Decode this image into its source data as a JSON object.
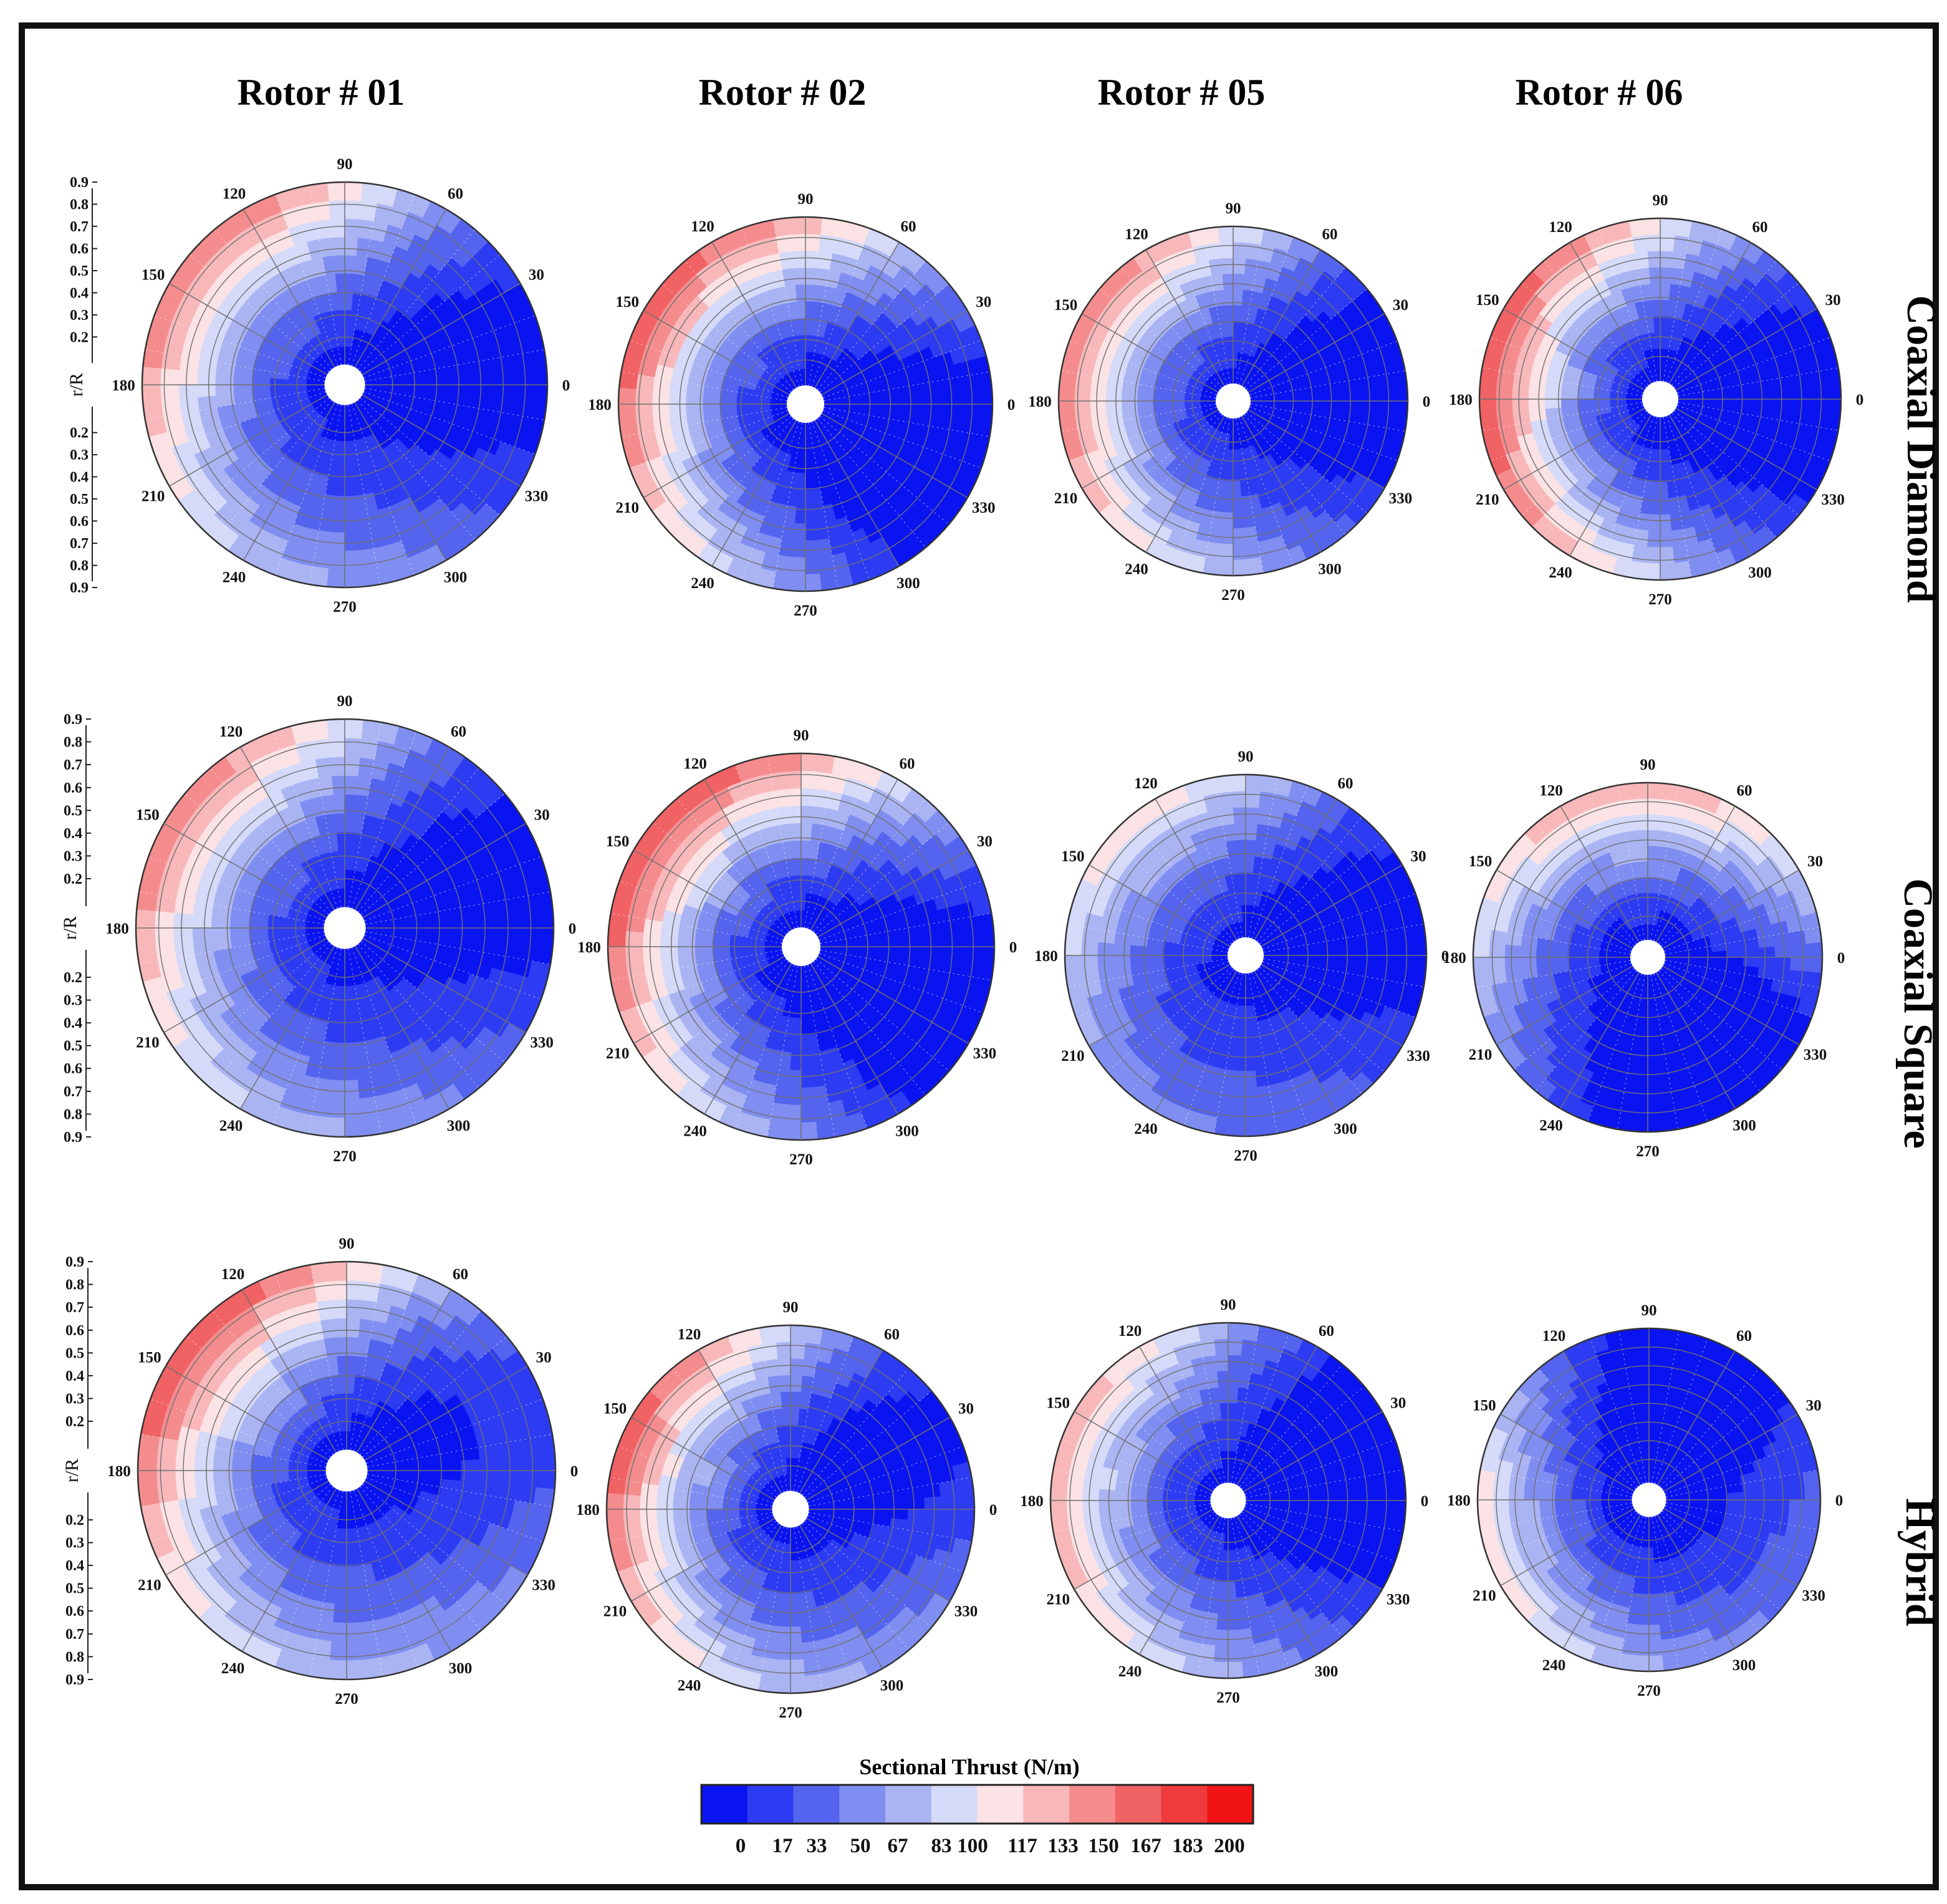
{
  "chart_data": {
    "type": "heatmap",
    "subtype": "polar-contour",
    "columns": [
      "Rotor # 01",
      "Rotor # 02",
      "Rotor # 05",
      "Rotor # 06"
    ],
    "rows": [
      "Coaxial Diamond",
      "Coaxial Square",
      "Hybrid"
    ],
    "angle_ticks": [
      "0",
      "30",
      "60",
      "90",
      "120",
      "150",
      "180",
      "210",
      "240",
      "270",
      "300",
      "330"
    ],
    "radial_axis": {
      "label": "r/R",
      "ticks": [
        "0.2",
        "0.3",
        "0.4",
        "0.5",
        "0.6",
        "0.7",
        "0.8",
        "0.9"
      ],
      "range": [
        0.2,
        0.9
      ]
    },
    "colorbar": {
      "title": "Sectional Thrust (N/m)",
      "ticks": [
        "0",
        "17",
        "33",
        "50",
        "67",
        "83",
        "100",
        "117",
        "133",
        "150",
        "167",
        "183",
        "200"
      ],
      "range": [
        0,
        200
      ],
      "colors": [
        "#0a14f0",
        "#2d3cf2",
        "#5564ee",
        "#7f8ef0",
        "#aab4f3",
        "#d4daf8",
        "#fbe2e4",
        "#f8b8ba",
        "#f48c8e",
        "#f06264",
        "#f03a3c",
        "#f21414"
      ]
    },
    "panels": [
      {
        "row": "Coaxial Diamond",
        "column": "Rotor # 01",
        "peak": 150,
        "peak_azimuth_deg": 135,
        "low_azimuth_deg": 20,
        "inner_min": 10
      },
      {
        "row": "Coaxial Diamond",
        "column": "Rotor # 02",
        "peak": 160,
        "peak_azimuth_deg": 150,
        "low_azimuth_deg": 340,
        "inner_min": 5
      },
      {
        "row": "Coaxial Diamond",
        "column": "Rotor # 05",
        "peak": 150,
        "peak_azimuth_deg": 160,
        "low_azimuth_deg": 10,
        "inner_min": 10
      },
      {
        "row": "Coaxial Diamond",
        "column": "Rotor # 06",
        "peak": 165,
        "peak_azimuth_deg": 170,
        "low_azimuth_deg": 0,
        "inner_min": 5
      },
      {
        "row": "Coaxial Square",
        "column": "Rotor # 01",
        "peak": 145,
        "peak_azimuth_deg": 140,
        "low_azimuth_deg": 30,
        "inner_min": 10
      },
      {
        "row": "Coaxial Square",
        "column": "Rotor # 02",
        "peak": 165,
        "peak_azimuth_deg": 145,
        "low_azimuth_deg": 340,
        "inner_min": 5
      },
      {
        "row": "Coaxial Square",
        "column": "Rotor # 05",
        "peak": 115,
        "peak_azimuth_deg": 110,
        "low_azimuth_deg": 30,
        "inner_min": 10
      },
      {
        "row": "Coaxial Square",
        "column": "Rotor # 06",
        "peak": 130,
        "peak_azimuth_deg": 100,
        "low_azimuth_deg": 300,
        "inner_min": 5
      },
      {
        "row": "Hybrid",
        "column": "Rotor # 01",
        "peak": 170,
        "peak_azimuth_deg": 130,
        "low_azimuth_deg": 40,
        "inner_min": 10
      },
      {
        "row": "Hybrid",
        "column": "Rotor # 02",
        "peak": 160,
        "peak_azimuth_deg": 150,
        "low_azimuth_deg": 45,
        "inner_min": 10
      },
      {
        "row": "Hybrid",
        "column": "Rotor # 05",
        "peak": 130,
        "peak_azimuth_deg": 170,
        "low_azimuth_deg": 20,
        "inner_min": 10
      },
      {
        "row": "Hybrid",
        "column": "Rotor # 06",
        "peak": 115,
        "peak_azimuth_deg": 180,
        "low_azimuth_deg": 90,
        "inner_min": 5
      }
    ]
  }
}
